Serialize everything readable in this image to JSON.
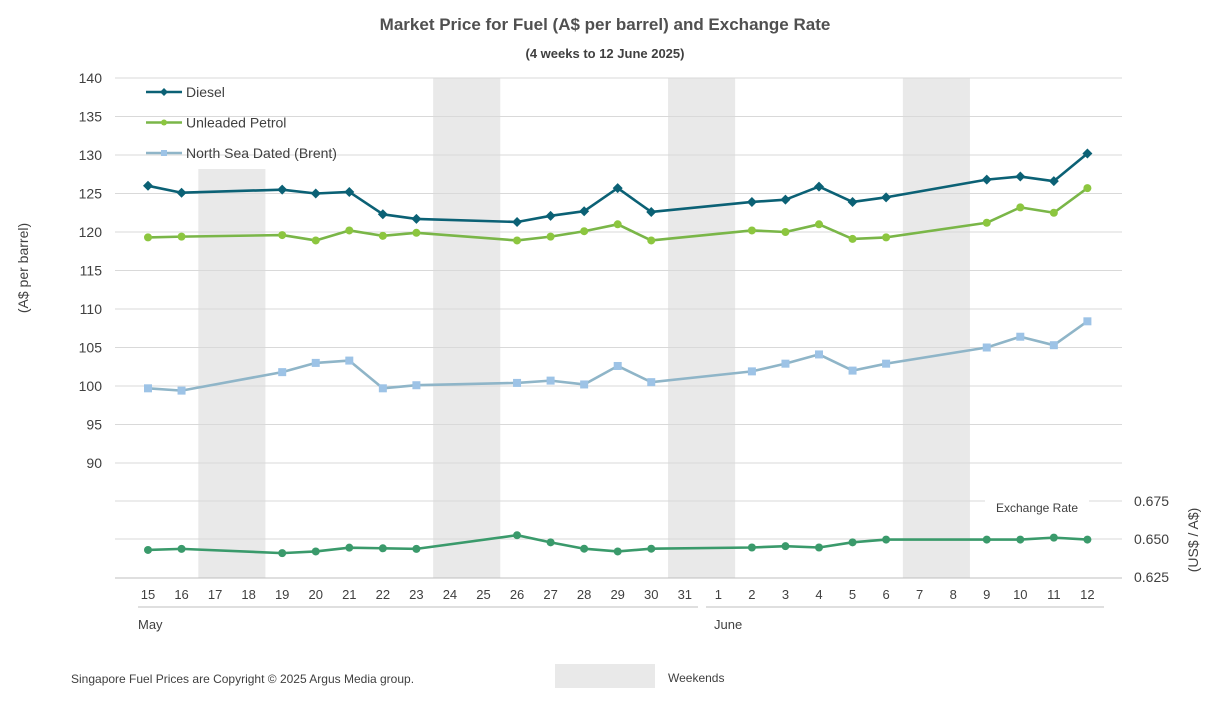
{
  "chart_data": {
    "type": "line",
    "title": "Market Price for Fuel (A$ per barrel) and Exchange Rate",
    "subtitle": "(4 weeks to 12 June 2025)",
    "ylabel": "(A$ per barrel)",
    "ylabel_right": "(US$ / A$)",
    "ylim": [
      90,
      140
    ],
    "yticks": [
      "140",
      "135",
      "130",
      "125",
      "120",
      "115",
      "110",
      "105",
      "100",
      "95",
      "90"
    ],
    "ylim_right": [
      0.625,
      0.675
    ],
    "yticks_right": [
      "0.675",
      "0.650",
      "0.625"
    ],
    "x": [
      "15",
      "16",
      "17",
      "18",
      "19",
      "20",
      "21",
      "22",
      "23",
      "24",
      "25",
      "26",
      "27",
      "28",
      "29",
      "30",
      "31",
      "1",
      "2",
      "3",
      "4",
      "5",
      "6",
      "7",
      "8",
      "9",
      "10",
      "11",
      "12"
    ],
    "months": [
      "May",
      "June"
    ],
    "weekends": [
      [
        "17",
        "18"
      ],
      [
        "24",
        "25"
      ],
      [
        "31",
        "1"
      ],
      [
        "7",
        "8"
      ]
    ],
    "weekends_label": "Weekends",
    "exchange_label": "Exchange Rate",
    "series": [
      {
        "name": "Diesel",
        "color": "#0b6175",
        "marker": "diamond",
        "values": [
          126.0,
          125.1,
          null,
          null,
          125.5,
          125.0,
          125.2,
          122.3,
          121.7,
          null,
          null,
          121.3,
          122.1,
          122.7,
          125.7,
          122.6,
          null,
          null,
          123.9,
          124.2,
          125.9,
          123.9,
          124.5,
          null,
          null,
          126.8,
          127.2,
          126.6,
          130.2
        ]
      },
      {
        "name": "Unleaded Petrol",
        "color": "#7ab648",
        "markerColor": "#8cc63f",
        "marker": "circle",
        "values": [
          119.3,
          119.4,
          null,
          null,
          119.6,
          118.9,
          120.2,
          119.5,
          119.9,
          null,
          null,
          118.9,
          119.4,
          120.1,
          121.0,
          118.9,
          null,
          null,
          120.2,
          120.0,
          121.0,
          119.1,
          119.3,
          null,
          null,
          121.2,
          123.2,
          122.5,
          125.7
        ]
      },
      {
        "name": "North Sea Dated (Brent)",
        "color": "#8fb5c8",
        "markerColor": "#9dc3e6",
        "marker": "square",
        "values": [
          99.7,
          99.4,
          null,
          null,
          101.8,
          103.0,
          103.3,
          99.7,
          100.1,
          null,
          null,
          100.4,
          100.7,
          100.2,
          102.6,
          100.5,
          null,
          null,
          101.9,
          102.9,
          104.1,
          102.0,
          102.9,
          null,
          null,
          105.0,
          106.4,
          105.3,
          108.4
        ]
      },
      {
        "name": "Exchange Rate",
        "color": "#3a9a6b",
        "marker": "circle",
        "axis": "right",
        "values": [
          0.6428,
          0.6435,
          null,
          null,
          0.6407,
          0.6418,
          0.6443,
          0.6439,
          0.6435,
          null,
          null,
          0.6525,
          0.6478,
          0.6436,
          0.6418,
          0.6436,
          null,
          null,
          0.6444,
          0.6453,
          0.6444,
          0.6478,
          0.6496,
          null,
          null,
          0.6496,
          0.6496,
          0.6509,
          0.6496
        ]
      }
    ]
  },
  "footer": {
    "copyright": "Singapore Fuel Prices are Copyright © 2025 Argus Media group."
  }
}
